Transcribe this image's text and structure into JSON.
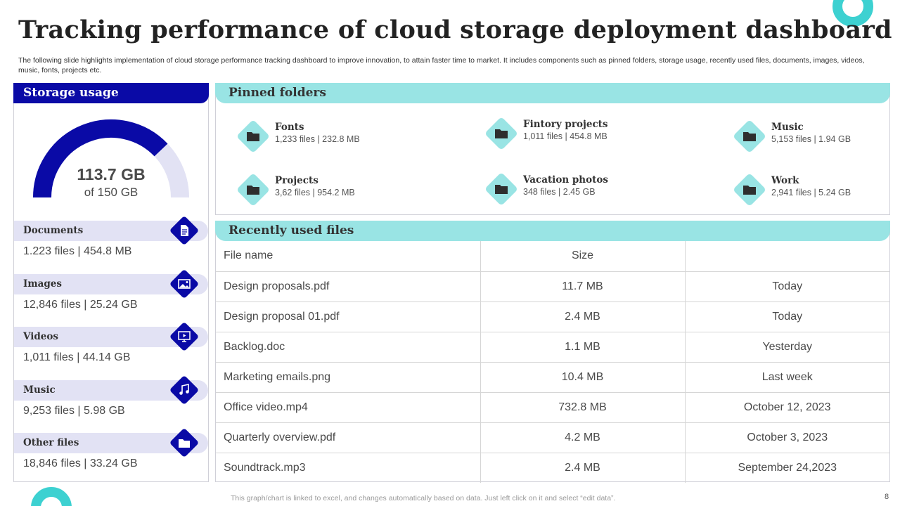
{
  "title": "Tracking performance of cloud storage deployment dashboard",
  "subtitle": "The following slide highlights implementation of cloud storage performance tracking dashboard to improve innovation, to attain faster time to  market. It includes components such as pinned folders, storage usage, recently used files, documents, images, videos, music, fonts, projects etc.",
  "storage": {
    "header": "Storage usage",
    "used_label": "113.7 GB",
    "total_label": "of 150 GB",
    "used_fraction": 0.758,
    "colors": {
      "used": "#0a0aa6",
      "remaining": "#e2e2f4"
    },
    "categories": [
      {
        "name": "Documents",
        "stats": "1.223 files | 454.8 MB",
        "icon": "document-icon"
      },
      {
        "name": "Images",
        "stats": "12,846 files | 25.24 GB",
        "icon": "image-icon"
      },
      {
        "name": "Videos",
        "stats": "1,011 files | 44.14 GB",
        "icon": "video-icon"
      },
      {
        "name": "Music",
        "stats": "9,253 files | 5.98 GB",
        "icon": "music-icon"
      },
      {
        "name": "Other files",
        "stats": "18,846 files | 33.24 GB",
        "icon": "folder-icon"
      }
    ]
  },
  "pinned": {
    "header": "Pinned folders",
    "folders": [
      {
        "name": "Fonts",
        "stats": "1,233 files | 232.8 MB"
      },
      {
        "name": "Fintory projects",
        "stats": "1,011 files | 454.8 MB"
      },
      {
        "name": "Music",
        "stats": "5,153 files | 1.94 GB"
      },
      {
        "name": "Projects",
        "stats": "3,62 files | 954.2 MB"
      },
      {
        "name": "Vacation photos",
        "stats": "348 files | 2.45 GB"
      },
      {
        "name": "Work",
        "stats": "2,941 files | 5.24 GB"
      }
    ]
  },
  "recent": {
    "header": "Recently used files",
    "columns": [
      "File name",
      "Size",
      ""
    ],
    "rows": [
      [
        "Design proposals.pdf",
        "11.7 MB",
        "Today"
      ],
      [
        "Design proposal 01.pdf",
        "2.4 MB",
        "Today"
      ],
      [
        "Backlog.doc",
        "1.1 MB",
        "Yesterday"
      ],
      [
        "Marketing emails.png",
        "10.4 MB",
        "Last week"
      ],
      [
        "Office video.mp4",
        "732.8 MB",
        "October 12, 2023"
      ],
      [
        "Quarterly  overview.pdf",
        "4.2 MB",
        "October 3, 2023"
      ],
      [
        "Soundtrack.mp3",
        "2.4 MB",
        "September 24,2023"
      ]
    ]
  },
  "footer_note": "This graph/chart is linked to excel,  and changes automatically based on data. Just left click on it and select “edit data”.",
  "page_number": "8"
}
